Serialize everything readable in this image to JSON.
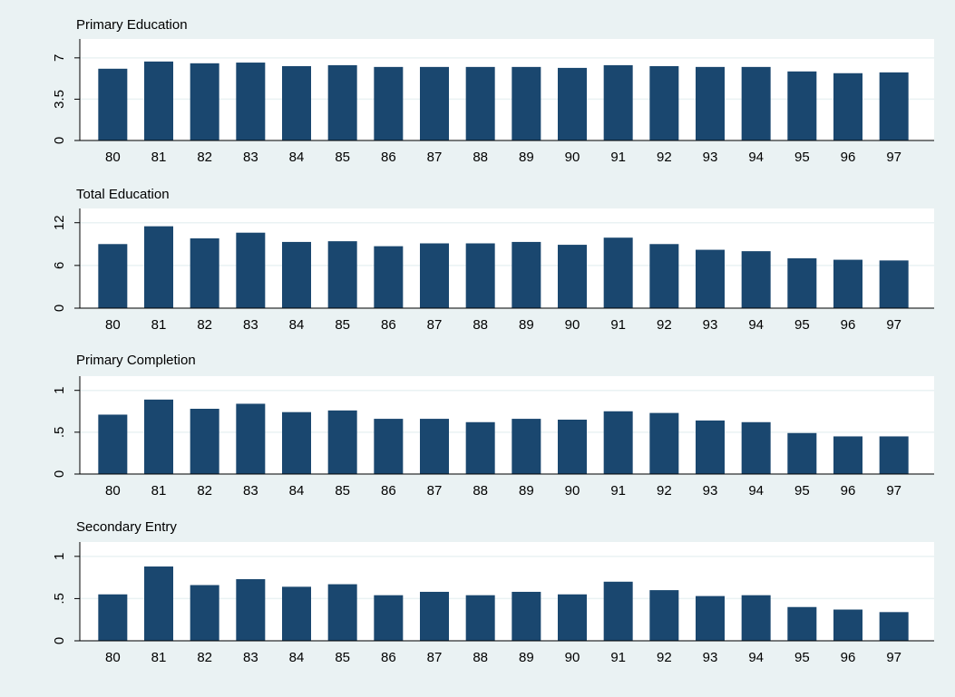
{
  "chart_data": [
    {
      "type": "bar",
      "title": "Primary Education",
      "color": "#1a476f",
      "grid": true,
      "categories": [
        "80",
        "81",
        "82",
        "83",
        "84",
        "85",
        "86",
        "87",
        "88",
        "89",
        "90",
        "91",
        "92",
        "93",
        "94",
        "95",
        "96",
        "97"
      ],
      "values": [
        6.08,
        6.69,
        6.54,
        6.6,
        6.3,
        6.38,
        6.23,
        6.23,
        6.23,
        6.23,
        6.15,
        6.38,
        6.3,
        6.23,
        6.23,
        5.85,
        5.7,
        5.77
      ],
      "ylim": [
        0,
        8.6
      ],
      "yticks": [
        0,
        3.5,
        7
      ]
    },
    {
      "type": "bar",
      "title": "Total Education",
      "color": "#1a476f",
      "grid": true,
      "categories": [
        "80",
        "81",
        "82",
        "83",
        "84",
        "85",
        "86",
        "87",
        "88",
        "89",
        "90",
        "91",
        "92",
        "93",
        "94",
        "95",
        "96",
        "97"
      ],
      "values": [
        9.0,
        11.5,
        9.8,
        10.6,
        9.3,
        9.4,
        8.7,
        9.1,
        9.1,
        9.3,
        8.9,
        9.9,
        9.0,
        8.2,
        8.0,
        7.0,
        6.8,
        6.7
      ],
      "ylim": [
        0,
        14
      ],
      "yticks": [
        0,
        6,
        12
      ]
    },
    {
      "type": "bar",
      "title": "Primary Completion",
      "color": "#1a476f",
      "grid": true,
      "categories": [
        "80",
        "81",
        "82",
        "83",
        "84",
        "85",
        "86",
        "87",
        "88",
        "89",
        "90",
        "91",
        "92",
        "93",
        "94",
        "95",
        "96",
        "97"
      ],
      "values": [
        0.71,
        0.89,
        0.78,
        0.84,
        0.74,
        0.76,
        0.66,
        0.66,
        0.62,
        0.66,
        0.65,
        0.75,
        0.73,
        0.64,
        0.62,
        0.49,
        0.45,
        0.45
      ],
      "ylim": [
        0,
        1.17
      ],
      "yticks": [
        0,
        {
          "value": 0.5,
          "label": ".5"
        },
        1
      ]
    },
    {
      "type": "bar",
      "title": "Secondary Entry",
      "color": "#1a476f",
      "grid": true,
      "categories": [
        "80",
        "81",
        "82",
        "83",
        "84",
        "85",
        "86",
        "87",
        "88",
        "89",
        "90",
        "91",
        "92",
        "93",
        "94",
        "95",
        "96",
        "97"
      ],
      "values": [
        0.55,
        0.88,
        0.66,
        0.73,
        0.64,
        0.67,
        0.54,
        0.58,
        0.54,
        0.58,
        0.55,
        0.7,
        0.6,
        0.53,
        0.54,
        0.4,
        0.37,
        0.34
      ],
      "ylim": [
        0,
        1.17
      ],
      "yticks": [
        0,
        {
          "value": 0.5,
          "label": ".5"
        },
        1
      ]
    }
  ]
}
